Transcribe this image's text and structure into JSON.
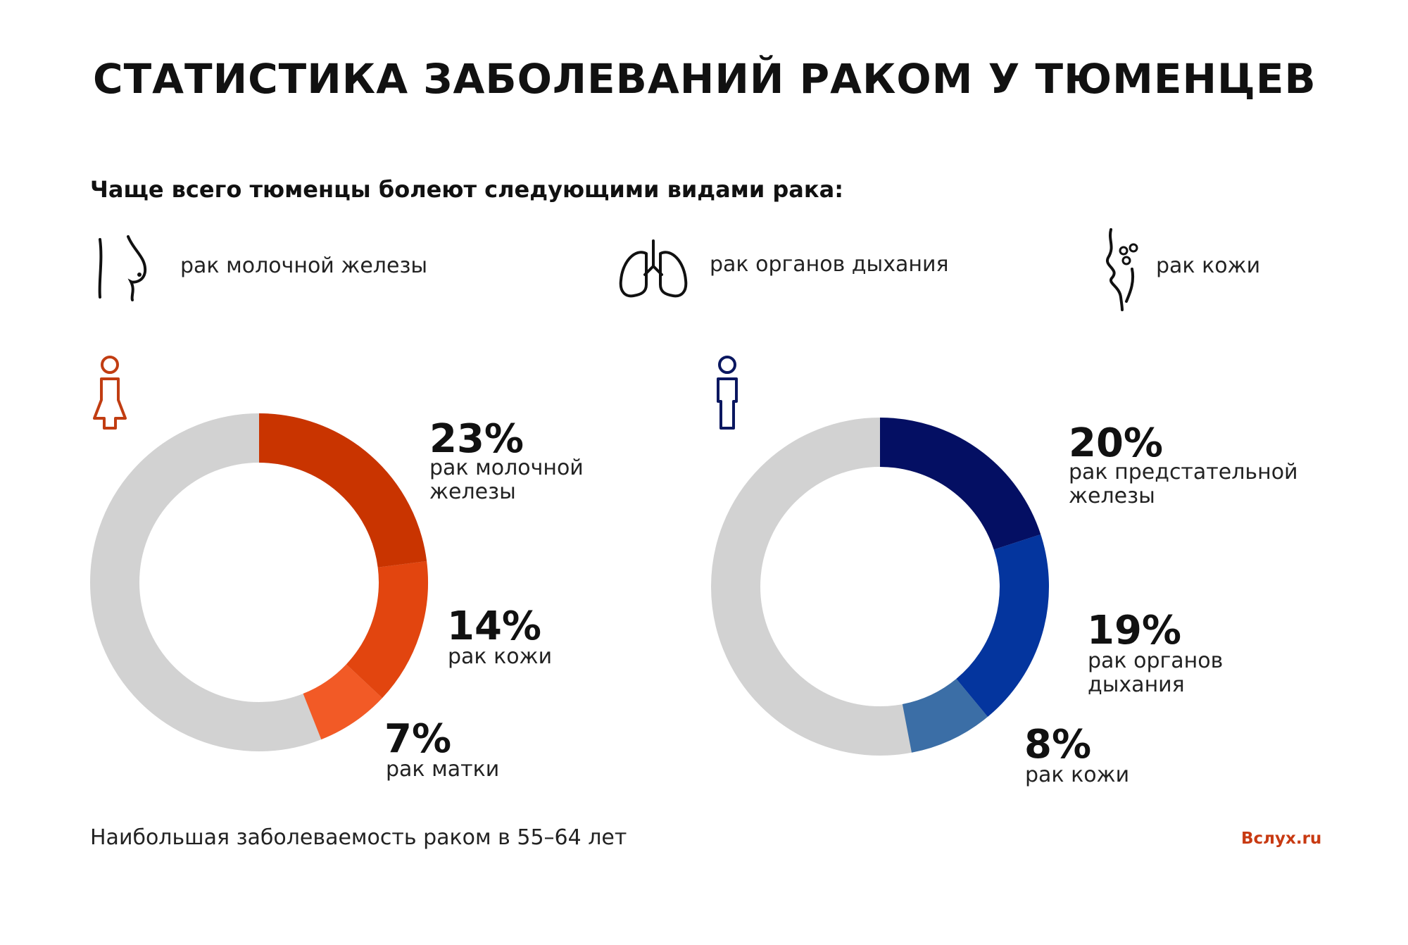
{
  "title": "СТАТИСТИКА ЗАБОЛЕВАНИЙ РАКОМ У ТЮМЕНЦЕВ",
  "subtitle": "Чаще всего тюменцы болеют следующими видами рака:",
  "top_types": [
    {
      "label": "рак молочной железы",
      "icon": "breast-icon"
    },
    {
      "label": "рак органов дыхания",
      "icon": "lungs-icon"
    },
    {
      "label": "рак кожи",
      "icon": "skin-icon"
    }
  ],
  "colors": {
    "track": "#d2d2d2",
    "women": [
      "#c93400",
      "#e2450f",
      "#f25a26"
    ],
    "men": [
      "#040f63",
      "#04359e",
      "#3b6ea6"
    ],
    "women_icon": "#c13d12",
    "men_icon": "#0a1760",
    "source": "#c83a12"
  },
  "chart_data": [
    {
      "type": "pie",
      "group": "women",
      "icon": "woman-icon",
      "slices": [
        {
          "value": 23,
          "pct_label": "23%",
          "label": "рак молочной железы"
        },
        {
          "value": 14,
          "pct_label": "14%",
          "label": "рак кожи"
        },
        {
          "value": 7,
          "pct_label": "7%",
          "label": "рак матки"
        }
      ]
    },
    {
      "type": "pie",
      "group": "men",
      "icon": "man-icon",
      "slices": [
        {
          "value": 20,
          "pct_label": "20%",
          "label": "рак предстательной железы"
        },
        {
          "value": 19,
          "pct_label": "19%",
          "label": "рак органов дыхания"
        },
        {
          "value": 8,
          "pct_label": "8%",
          "label": "рак кожи"
        }
      ]
    }
  ],
  "footer_note": "Наибольшая заболеваемость раком в 55–64 лет",
  "source": "Вслух.ru"
}
